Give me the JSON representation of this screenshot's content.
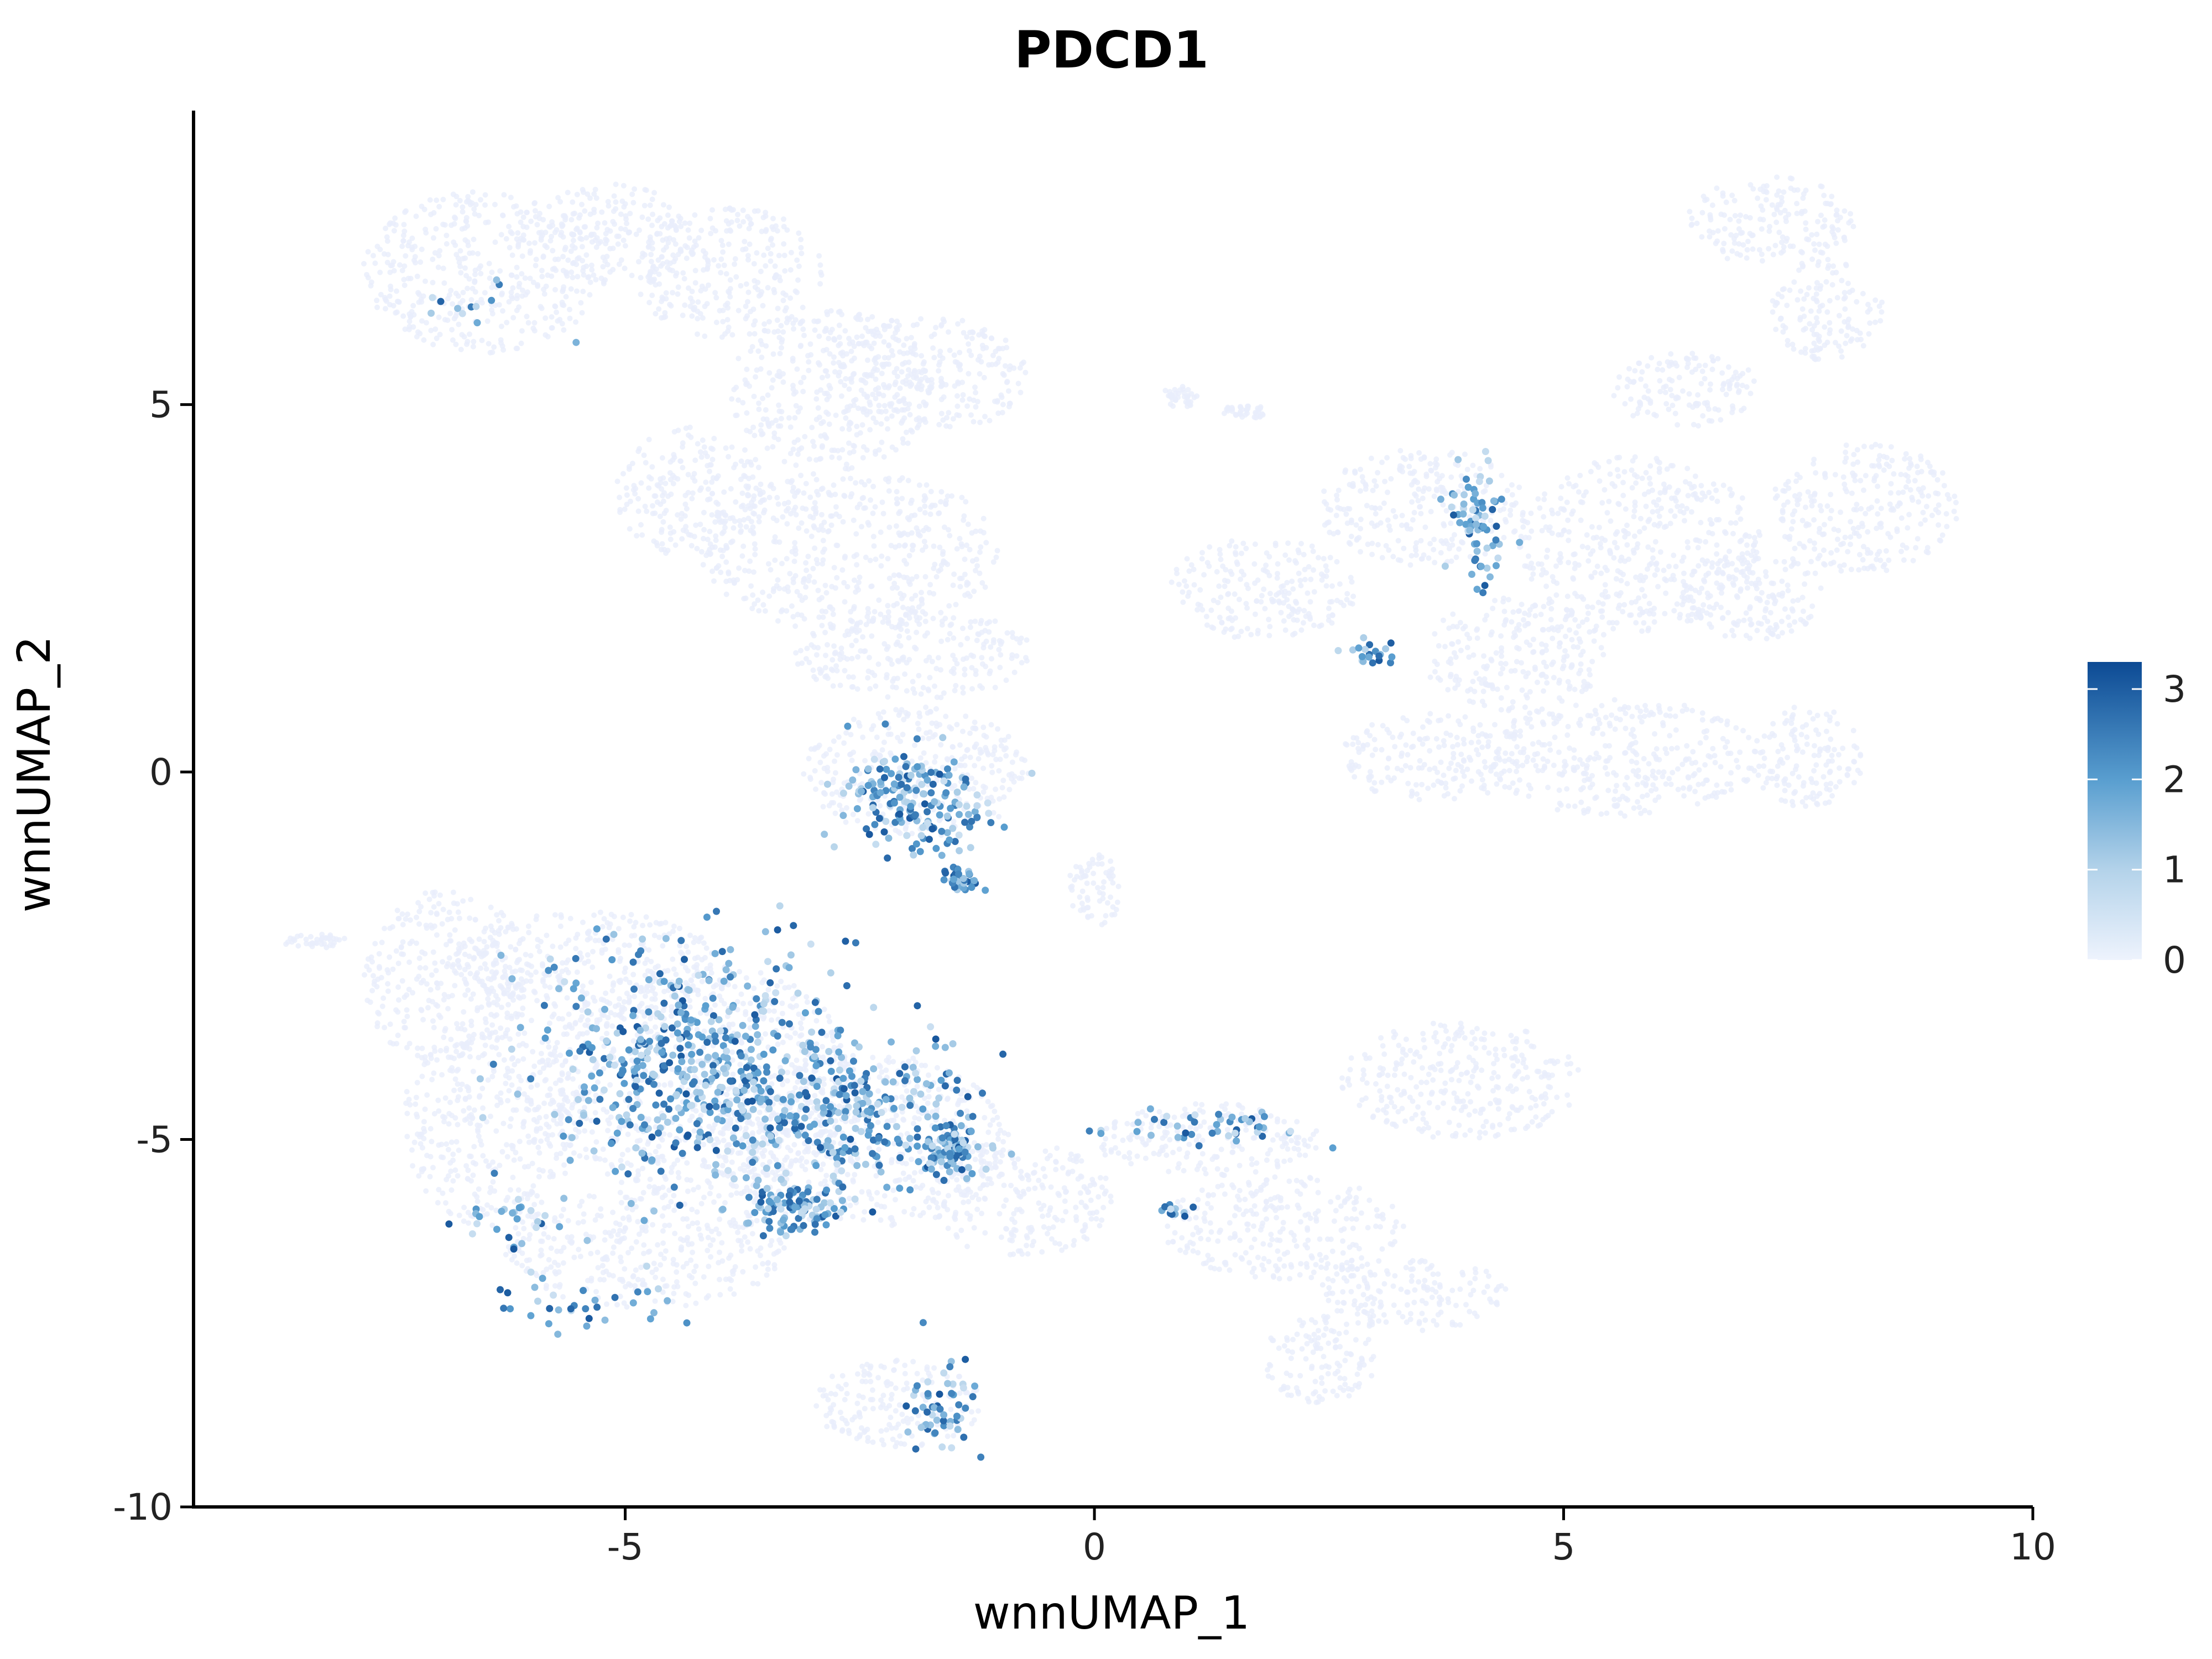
{
  "chart_data": {
    "type": "scatter",
    "title": "PDCD1",
    "xlabel": "wnnUMAP_1",
    "ylabel": "wnnUMAP_2",
    "xlim": [
      -9.6,
      10
    ],
    "ylim": [
      -10,
      9
    ],
    "xticks": [
      -5,
      0,
      5,
      10
    ],
    "yticks": [
      5,
      0,
      -5,
      -10
    ],
    "xtick_labels": [
      "-5",
      "0",
      "5",
      "10"
    ],
    "ytick_labels": [
      "5",
      "0",
      "-5",
      "-10"
    ],
    "grid": false,
    "legend_position": "right",
    "colorbar": {
      "min": 0,
      "max": 3.3,
      "ticks": [
        0,
        1,
        2,
        3
      ],
      "tick_labels": [
        "0",
        "1",
        "2",
        "3"
      ],
      "low_color": "#eef3fd",
      "high_color": "#0c4a94"
    },
    "background_clusters": [
      {
        "cx": -6.5,
        "cy": 6.8,
        "rx": 1.3,
        "ry": 1.1
      },
      {
        "cx": -5.2,
        "cy": 7.3,
        "rx": 1.0,
        "ry": 0.7
      },
      {
        "cx": -3.9,
        "cy": 6.8,
        "rx": 1.0,
        "ry": 0.9
      },
      {
        "cx": -2.8,
        "cy": 5.2,
        "rx": 1.1,
        "ry": 1.1
      },
      {
        "cx": -1.8,
        "cy": 5.4,
        "rx": 1.1,
        "ry": 0.8
      },
      {
        "cx": -4.3,
        "cy": 3.8,
        "rx": 0.8,
        "ry": 0.9
      },
      {
        "cx": -2.6,
        "cy": 3.0,
        "rx": 1.6,
        "ry": 1.1
      },
      {
        "cx": -1.9,
        "cy": 1.6,
        "rx": 1.3,
        "ry": 0.6
      },
      {
        "cx": -1.9,
        "cy": 0.0,
        "rx": 1.2,
        "ry": 0.9
      },
      {
        "cx": 0.9,
        "cy": 5.1,
        "rx": 0.2,
        "ry": 0.15
      },
      {
        "cx": 1.6,
        "cy": 4.9,
        "rx": 0.25,
        "ry": 0.1
      },
      {
        "cx": 1.8,
        "cy": 2.5,
        "rx": 1.0,
        "ry": 0.7
      },
      {
        "cx": 3.5,
        "cy": 3.6,
        "rx": 1.1,
        "ry": 0.8
      },
      {
        "cx": 4.5,
        "cy": 1.6,
        "rx": 1.0,
        "ry": 0.8
      },
      {
        "cx": 5.8,
        "cy": 3.1,
        "rx": 1.3,
        "ry": 1.2
      },
      {
        "cx": 7.2,
        "cy": 7.5,
        "rx": 0.9,
        "ry": 0.6
      },
      {
        "cx": 7.8,
        "cy": 6.3,
        "rx": 0.6,
        "ry": 0.7
      },
      {
        "cx": 6.3,
        "cy": 5.2,
        "rx": 0.8,
        "ry": 0.5
      },
      {
        "cx": 8.2,
        "cy": 3.6,
        "rx": 1.0,
        "ry": 0.9
      },
      {
        "cx": 7.0,
        "cy": 2.4,
        "rx": 0.8,
        "ry": 0.6
      },
      {
        "cx": 5.6,
        "cy": 0.2,
        "rx": 1.5,
        "ry": 0.8
      },
      {
        "cx": 3.6,
        "cy": 0.2,
        "rx": 1.0,
        "ry": 0.6
      },
      {
        "cx": 7.6,
        "cy": 0.2,
        "rx": 0.6,
        "ry": 0.7
      },
      {
        "cx": -6.9,
        "cy": -2.8,
        "rx": 0.9,
        "ry": 1.2
      },
      {
        "cx": -5.4,
        "cy": -2.7,
        "rx": 1.5,
        "ry": 0.8
      },
      {
        "cx": -6.4,
        "cy": -4.8,
        "rx": 1.0,
        "ry": 1.4
      },
      {
        "cx": -4.2,
        "cy": -4.2,
        "rx": 1.7,
        "ry": 1.6
      },
      {
        "cx": -2.5,
        "cy": -5.0,
        "rx": 1.6,
        "ry": 1.2
      },
      {
        "cx": -4.8,
        "cy": -6.5,
        "rx": 1.5,
        "ry": 0.8
      },
      {
        "cx": -2.1,
        "cy": -8.6,
        "rx": 0.9,
        "ry": 0.6
      },
      {
        "cx": -0.8,
        "cy": -5.8,
        "rx": 1.0,
        "ry": 0.8
      },
      {
        "cx": 1.2,
        "cy": -5.0,
        "rx": 1.2,
        "ry": 0.5
      },
      {
        "cx": 3.9,
        "cy": -4.2,
        "rx": 1.3,
        "ry": 0.8
      },
      {
        "cx": 2.0,
        "cy": -6.2,
        "rx": 1.3,
        "ry": 0.7
      },
      {
        "cx": 3.4,
        "cy": -7.1,
        "rx": 1.0,
        "ry": 0.5
      },
      {
        "cx": 2.4,
        "cy": -8.0,
        "rx": 0.6,
        "ry": 0.6
      },
      {
        "cx": -8.3,
        "cy": -2.3,
        "rx": 0.35,
        "ry": 0.1
      },
      {
        "cx": 0.0,
        "cy": -1.6,
        "rx": 0.3,
        "ry": 0.5
      }
    ],
    "expression_hotspots": [
      {
        "cx": -4.2,
        "cy": -4.0,
        "rx": 1.5,
        "ry": 1.4,
        "n": 520
      },
      {
        "cx": -3.2,
        "cy": -5.9,
        "rx": 0.5,
        "ry": 0.3,
        "n": 110
      },
      {
        "cx": -1.5,
        "cy": -5.1,
        "rx": 0.3,
        "ry": 0.3,
        "n": 80
      },
      {
        "cx": -2.4,
        "cy": -4.6,
        "rx": 1.1,
        "ry": 0.9,
        "n": 220
      },
      {
        "cx": -1.9,
        "cy": -0.4,
        "rx": 0.8,
        "ry": 0.6,
        "n": 180
      },
      {
        "cx": -1.4,
        "cy": -1.5,
        "rx": 0.2,
        "ry": 0.2,
        "n": 35
      },
      {
        "cx": -1.6,
        "cy": -8.6,
        "rx": 0.35,
        "ry": 0.6,
        "n": 55
      },
      {
        "cx": 4.1,
        "cy": 3.5,
        "rx": 0.3,
        "ry": 0.8,
        "n": 70
      },
      {
        "cx": 3.0,
        "cy": 1.6,
        "rx": 0.3,
        "ry": 0.15,
        "n": 20
      },
      {
        "cx": 1.2,
        "cy": -4.8,
        "rx": 0.9,
        "ry": 0.2,
        "n": 45
      },
      {
        "cx": 0.8,
        "cy": -6.0,
        "rx": 0.2,
        "ry": 0.15,
        "n": 12
      },
      {
        "cx": -6.5,
        "cy": 6.2,
        "rx": 0.8,
        "ry": 0.6,
        "n": 12
      },
      {
        "cx": -5.3,
        "cy": -7.3,
        "rx": 0.9,
        "ry": 0.3,
        "n": 30
      },
      {
        "cx": -6.2,
        "cy": -6.2,
        "rx": 0.6,
        "ry": 0.7,
        "n": 30
      }
    ]
  }
}
